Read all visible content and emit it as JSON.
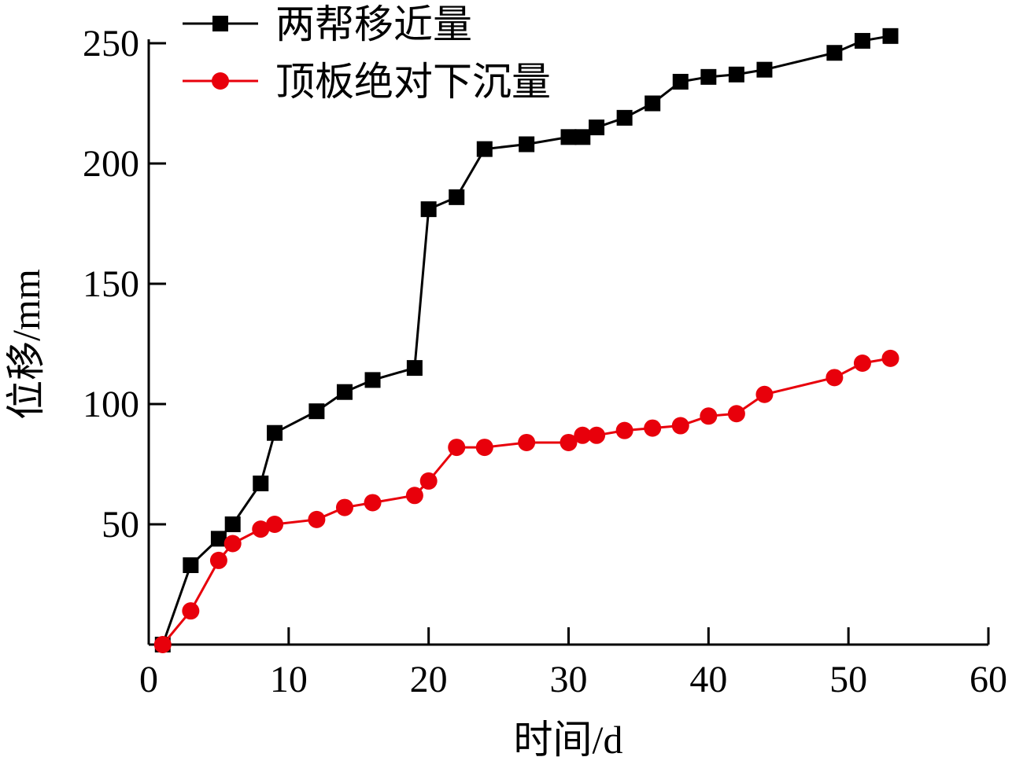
{
  "chart_data": {
    "type": "line",
    "title": "",
    "xlabel": "时间/d",
    "ylabel": "位移/mm",
    "xlim": [
      0,
      60
    ],
    "ylim": [
      0,
      250
    ],
    "xticks": [
      0,
      10,
      20,
      30,
      40,
      50,
      60
    ],
    "xtick_labels": [
      "0",
      "10",
      "20",
      "30",
      "40",
      "50",
      "60"
    ],
    "yticks": [
      50,
      100,
      150,
      200,
      250
    ],
    "ytick_labels": [
      "50",
      "100",
      "150",
      "200",
      "250"
    ],
    "grid": false,
    "legend_position": "top-left",
    "x": [
      1,
      3,
      5,
      6,
      8,
      9,
      12,
      14,
      16,
      19,
      20,
      22,
      24,
      27,
      30,
      31,
      32,
      34,
      36,
      38,
      40,
      42,
      44,
      49,
      51,
      53
    ],
    "series": [
      {
        "name": "两帮移近量",
        "color": "#000000",
        "marker": "square",
        "values": [
          0,
          33,
          44,
          50,
          67,
          88,
          97,
          105,
          110,
          115,
          181,
          186,
          206,
          208,
          211,
          211,
          215,
          219,
          225,
          234,
          236,
          237,
          239,
          246,
          251,
          253
        ]
      },
      {
        "name": "顶板绝对下沉量",
        "color": "#e8000b",
        "marker": "circle",
        "values": [
          0,
          14,
          35,
          42,
          48,
          50,
          52,
          57,
          59,
          62,
          68,
          82,
          82,
          84,
          84,
          87,
          87,
          89,
          90,
          91,
          95,
          96,
          104,
          111,
          117,
          119
        ]
      }
    ]
  }
}
